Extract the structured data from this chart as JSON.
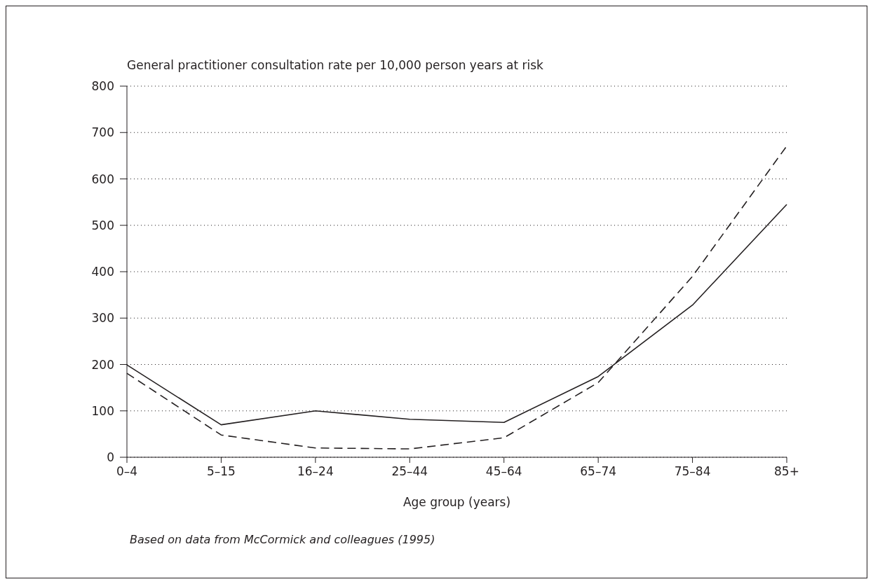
{
  "chart_data": {
    "type": "line",
    "ylabel": "General practitioner consultation rate per 10,000 person years at risk",
    "xlabel": "Age group (years)",
    "annotations": [
      "Based on data from McCormick and colleagues (1995)"
    ],
    "categories": [
      "0–4",
      "5–15",
      "16–24",
      "25–44",
      "45–64",
      "65–74",
      "75–84",
      "85+"
    ],
    "series": [
      {
        "color": "#231f20",
        "line_style": "solid",
        "values": [
          199,
          70,
          100,
          82,
          75,
          174,
          328,
          545
        ]
      },
      {
        "color": "#231f20",
        "line_style": "dashed",
        "values": [
          181,
          48,
          20,
          18,
          42,
          161,
          390,
          671
        ]
      }
    ],
    "ylim": [
      0,
      800
    ],
    "yticks": [
      0,
      100,
      200,
      300,
      400,
      500,
      600,
      700,
      800
    ],
    "grid": "y",
    "legend": false,
    "marker": "none"
  }
}
